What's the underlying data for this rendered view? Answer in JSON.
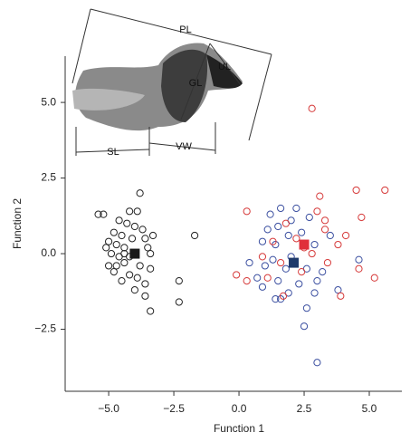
{
  "chart_data": {
    "type": "scatter",
    "x_label": "Function 1",
    "y_label": "Function 2",
    "xlim": [
      -6.67,
      6.25
    ],
    "ylim": [
      -4.55,
      6.53
    ],
    "xticks": [
      {
        "value": -5,
        "label": "−5.0"
      },
      {
        "value": -2.5,
        "label": "−2.5"
      },
      {
        "value": 0,
        "label": "0.0"
      },
      {
        "value": 2.5,
        "label": "2.5"
      },
      {
        "value": 5,
        "label": "5.0"
      }
    ],
    "yticks": [
      {
        "value": -2.5,
        "label": "−2.5"
      },
      {
        "value": 0,
        "label": "0.0"
      },
      {
        "value": 2.5,
        "label": "2.5"
      },
      {
        "value": 5,
        "label": "5.0"
      }
    ],
    "inset_labels": [
      "PL",
      "UL",
      "GL",
      "SL",
      "VW"
    ],
    "series": [
      {
        "color": "#222222",
        "centroid_color": "#1a1a1a",
        "centroid": [
          -4.0,
          0.0
        ],
        "x": [
          -5.4,
          -5.2,
          -3.8,
          -4.2,
          -3.9,
          -4.6,
          -4.3,
          -4.0,
          -3.7,
          -4.8,
          -4.5,
          -4.1,
          -3.6,
          -5.0,
          -4.7,
          -4.4,
          -3.5,
          -4.9,
          -4.6,
          -4.2,
          -3.4,
          -5.0,
          -4.7,
          -4.4,
          -3.8,
          -3.4,
          -4.8,
          -4.2,
          -3.9,
          -4.5,
          -3.6,
          -4.0,
          -3.6,
          -2.3,
          -2.3,
          -3.4,
          -1.7,
          -4.4,
          -5.1,
          -3.3
        ],
        "y": [
          1.3,
          1.3,
          2.0,
          1.4,
          1.4,
          1.1,
          1.0,
          0.9,
          0.8,
          0.7,
          0.6,
          0.5,
          0.5,
          0.4,
          0.3,
          0.2,
          0.2,
          0.0,
          -0.1,
          -0.1,
          0.0,
          -0.4,
          -0.4,
          -0.3,
          -0.4,
          -0.5,
          -0.6,
          -0.7,
          -0.8,
          -0.9,
          -1.0,
          -1.2,
          -1.4,
          -0.9,
          -1.6,
          -1.9,
          0.6,
          0.0,
          0.2,
          0.6
        ]
      },
      {
        "color": "#3b4fa0",
        "centroid_color": "#1f3a6b",
        "centroid": [
          2.1,
          -0.3
        ],
        "x": [
          1.6,
          2.2,
          1.2,
          2.7,
          2.0,
          1.5,
          1.1,
          2.4,
          1.9,
          0.9,
          1.4,
          2.9,
          0.4,
          1.3,
          1.0,
          1.8,
          2.6,
          3.2,
          0.7,
          1.5,
          2.3,
          3.0,
          1.9,
          1.4,
          2.9,
          3.8,
          4.6,
          2.6,
          2.5,
          3.0,
          1.6,
          2.0,
          3.5,
          0.9
        ],
        "y": [
          1.5,
          1.5,
          1.3,
          1.2,
          1.1,
          0.9,
          0.8,
          0.7,
          0.6,
          0.4,
          0.3,
          0.3,
          -0.3,
          -0.2,
          -0.4,
          -0.5,
          -0.5,
          -0.6,
          -0.8,
          -0.9,
          -1.0,
          -0.9,
          -1.3,
          -1.5,
          -1.3,
          -1.2,
          -0.2,
          -1.8,
          -2.4,
          -3.6,
          -1.5,
          -0.1,
          0.6,
          -1.1
        ]
      },
      {
        "color": "#d63a3a",
        "centroid_color": "#e0303a",
        "centroid": [
          2.5,
          0.3
        ],
        "x": [
          2.8,
          3.1,
          4.5,
          5.6,
          3.0,
          0.3,
          4.7,
          1.8,
          2.2,
          3.3,
          3.8,
          4.1,
          1.3,
          2.5,
          0.9,
          -0.1,
          0.3,
          1.6,
          2.8,
          3.4,
          4.6,
          5.2,
          2.4,
          1.1,
          3.9,
          1.7,
          3.3
        ],
        "y": [
          4.8,
          1.9,
          2.1,
          2.1,
          1.4,
          1.4,
          1.2,
          1.0,
          0.5,
          0.8,
          0.3,
          0.6,
          0.4,
          0.2,
          -0.1,
          -0.7,
          -0.9,
          -0.3,
          0.0,
          -0.3,
          -0.5,
          -0.8,
          -0.6,
          -0.8,
          -1.4,
          -1.4,
          1.1
        ]
      }
    ]
  }
}
